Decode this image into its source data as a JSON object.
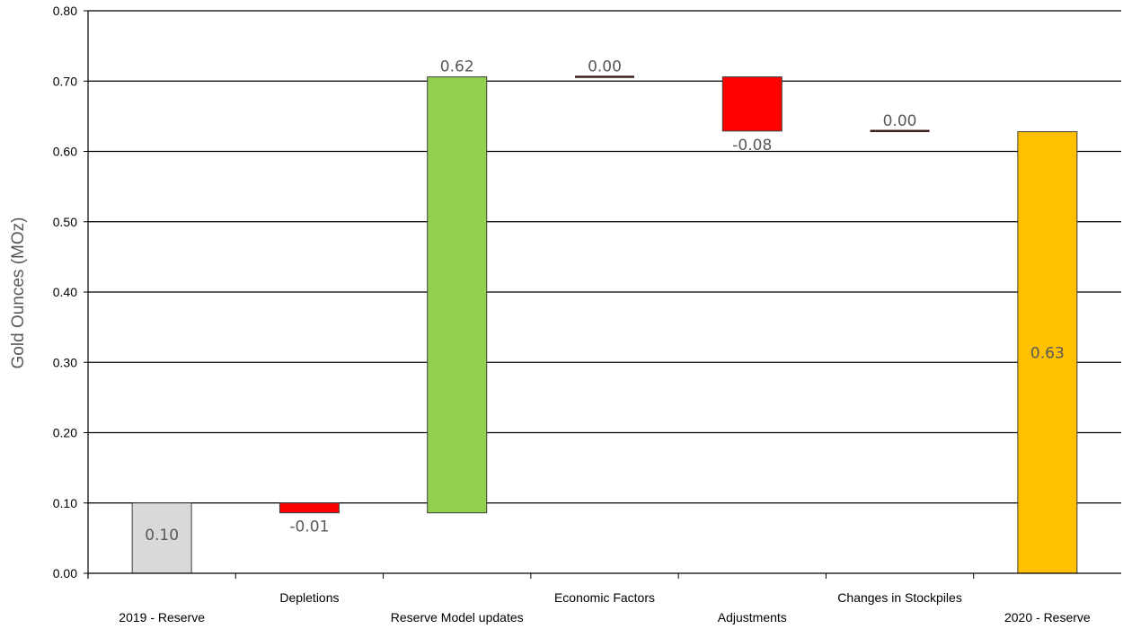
{
  "chart_data": {
    "type": "bar",
    "subtype": "waterfall",
    "title": "",
    "xlabel": "",
    "ylabel": "Gold Ounces (MOz)",
    "ylim": [
      0,
      0.8
    ],
    "yticks": [
      "0.00",
      "0.10",
      "0.20",
      "0.30",
      "0.40",
      "0.50",
      "0.60",
      "0.70",
      "0.80"
    ],
    "grid": true,
    "legend": "none",
    "categories": [
      "2019 - Reserve",
      "Depletions",
      "Reserve  Model updates",
      "Economic Factors",
      "Adjustments",
      "Changes in Stockpiles",
      "2020 - Reserve"
    ],
    "category_label_row": [
      "bottom",
      "top",
      "bottom",
      "top",
      "bottom",
      "top",
      "bottom"
    ],
    "values": [
      0.1,
      -0.014,
      0.62,
      0.0,
      -0.077,
      0.0,
      0.628
    ],
    "bar_kind": [
      "total",
      "change",
      "change",
      "change",
      "change",
      "change",
      "total"
    ],
    "data_labels": [
      "0.10",
      "-0.01",
      "0.62",
      "0.00",
      "-0.08",
      "0.00",
      "0.63"
    ],
    "colors": {
      "start_total": "#d9d9d9",
      "increase": "#92d050",
      "decrease": "#ff0000",
      "zero_change": "#3a1e1e",
      "end_total": "#ffc000",
      "bar_border": "#404040",
      "grid": "#000000"
    }
  }
}
